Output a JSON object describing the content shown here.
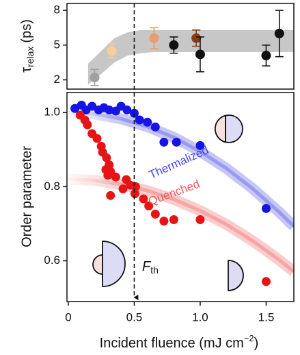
{
  "chart_data": [
    {
      "type": "errorbar",
      "y_label": {
        "text": "τ",
        "sub": "relax",
        "tail": "(ps)"
      },
      "xlim": [
        -0.01,
        1.71
      ],
      "ylim": [
        1.2,
        8.6
      ],
      "yticks": [
        2,
        5,
        8
      ],
      "x": [
        0.2,
        0.33,
        0.65,
        0.8,
        0.97,
        1.0,
        1.5,
        1.6
      ],
      "values": [
        2.2,
        4.5,
        5.6,
        5.0,
        5.6,
        4.2,
        4.1,
        6.0
      ],
      "errors": [
        0.7,
        0.6,
        0.9,
        0.7,
        0.7,
        1.5,
        0.9,
        2.0
      ],
      "colors": [
        "#a0a0a0",
        "#f7cf94",
        "#ec9a70",
        "#111111",
        "#8a3a12",
        "#111111",
        "#111111",
        "#111111"
      ],
      "band": {
        "color": "#b4b4b4",
        "x": [
          0.15,
          0.25,
          0.35,
          0.45,
          0.55,
          0.65,
          1.71
        ],
        "lower": [
          1.6,
          2.5,
          3.5,
          4.1,
          4.3,
          4.4,
          4.4
        ],
        "upper": [
          3.4,
          4.5,
          5.6,
          6.1,
          6.3,
          6.3,
          6.3
        ]
      }
    },
    {
      "type": "scatter",
      "y_label": "Order parameter",
      "x_label": {
        "text": "Incident fluence (mJ cm",
        "sup": "−2",
        "tail": ")"
      },
      "xlim": [
        -0.01,
        1.71
      ],
      "xticks": [
        0,
        0.5,
        {
          "value": 1,
          "label": "1.0"
        },
        1.5
      ],
      "ylim": [
        0.49,
        1.054
      ],
      "yticks": [
        0.6,
        0.8,
        {
          "value": 1,
          "label": "1.0"
        }
      ],
      "series": [
        {
          "color": "#1414e6",
          "x": [
            0.05,
            0.1,
            0.135,
            0.18,
            0.23,
            0.27,
            0.31,
            0.36,
            0.4,
            0.445,
            0.5,
            0.54,
            0.6,
            0.66,
            0.725,
            0.82,
            1.0,
            1.5
          ],
          "values": [
            1.011,
            1.02,
            1.007,
            1.017,
            1.007,
            1.013,
            1.007,
            1.004,
            1.017,
            1.007,
            0.998,
            0.98,
            0.974,
            0.961,
            0.92,
            0.92,
            0.911,
            0.741
          ]
        },
        {
          "color": "#e61414",
          "x": [
            0.09,
            0.125,
            0.145,
            0.18,
            0.218,
            0.25,
            0.26,
            0.29,
            0.31,
            0.285,
            0.32,
            0.3,
            0.36,
            0.44,
            0.47,
            0.51,
            0.415,
            0.505,
            0.32,
            0.57,
            0.61,
            0.66,
            0.725,
            0.8,
            1.0,
            1.5
          ],
          "values": [
            0.993,
            0.98,
            0.967,
            0.943,
            0.93,
            0.909,
            0.893,
            0.878,
            0.859,
            0.846,
            0.841,
            0.831,
            0.826,
            0.819,
            0.804,
            0.8,
            0.794,
            0.781,
            0.776,
            0.767,
            0.748,
            0.726,
            0.707,
            0.711,
            0.711,
            0.544
          ]
        }
      ],
      "curves": [
        {
          "name": "Thermalized",
          "color": "#4646e6",
          "x": [
            0,
            0.2,
            0.4,
            0.6,
            0.8,
            1.0,
            1.2,
            1.4,
            1.6,
            1.71
          ],
          "values": [
            1.0,
            0.996,
            0.983,
            0.962,
            0.933,
            0.895,
            0.849,
            0.794,
            0.731,
            0.693
          ]
        },
        {
          "name": "Quenched",
          "color": "#f05a5a",
          "x": [
            0,
            0.2,
            0.4,
            0.6,
            0.8,
            1.0,
            1.2,
            1.4,
            1.6,
            1.71
          ],
          "values": [
            0.82,
            0.817,
            0.806,
            0.789,
            0.766,
            0.735,
            0.698,
            0.653,
            0.602,
            0.571
          ]
        }
      ],
      "threshold": {
        "x": 0.5,
        "label": "F",
        "label_sub": "th"
      }
    }
  ]
}
